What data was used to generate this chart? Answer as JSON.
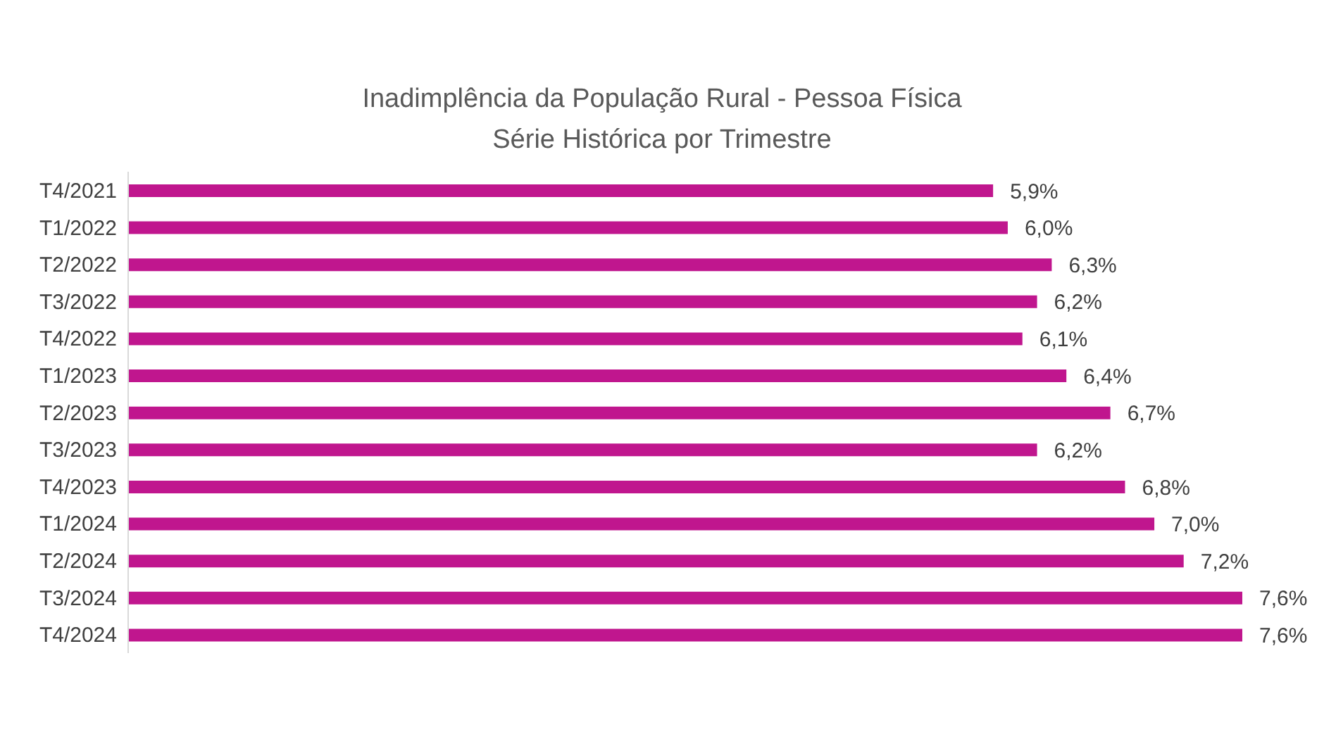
{
  "chart_data": {
    "type": "bar",
    "orientation": "horizontal",
    "title": "Inadimplência da População Rural - Pessoa Física",
    "subtitle": "Série Histórica por Trimestre",
    "categories": [
      "T4/2021",
      "T1/2022",
      "T2/2022",
      "T3/2022",
      "T4/2022",
      "T1/2023",
      "T2/2023",
      "T3/2023",
      "T4/2023",
      "T1/2024",
      "T2/2024",
      "T3/2024",
      "T4/2024"
    ],
    "values": [
      5.9,
      6.0,
      6.3,
      6.2,
      6.1,
      6.4,
      6.7,
      6.2,
      6.8,
      7.0,
      7.2,
      7.6,
      7.6
    ],
    "value_labels": [
      "5,9%",
      "6,0%",
      "6,3%",
      "6,2%",
      "6,1%",
      "6,4%",
      "6,7%",
      "6,2%",
      "6,8%",
      "7,0%",
      "7,2%",
      "7,6%",
      "7,6%"
    ],
    "color": "#c0168e"
  }
}
